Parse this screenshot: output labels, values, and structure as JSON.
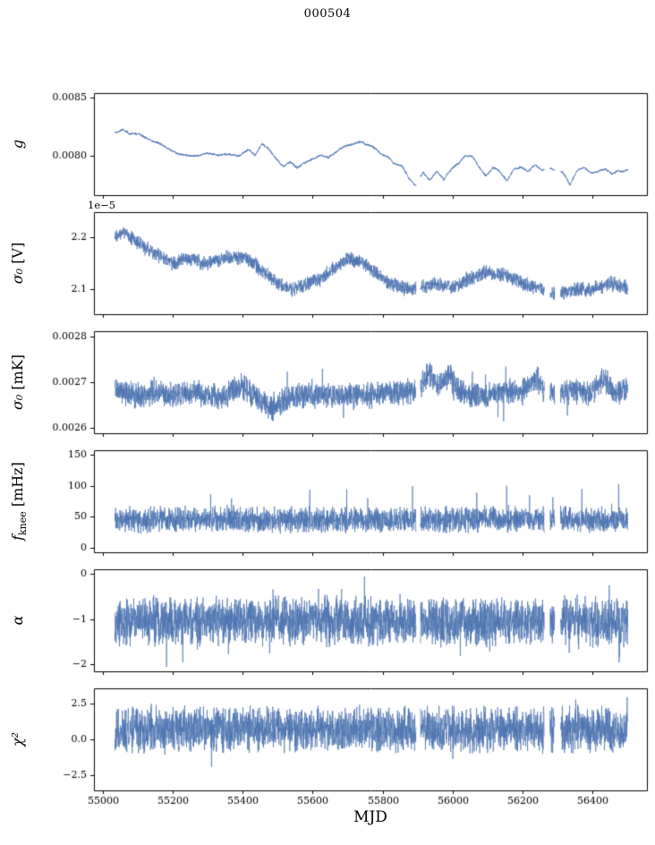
{
  "title": "000504",
  "xlabel": "MJD",
  "chart_data": {
    "type": "line",
    "title": "000504",
    "xlabel": "MJD",
    "line_color": "#4c72b0",
    "xlim": [
      54975,
      56555
    ],
    "xticks": [
      55000,
      55200,
      55400,
      55600,
      55800,
      56000,
      56200,
      56400
    ],
    "xtick_labels": [
      "55000",
      "55200",
      "55400",
      "55600",
      "55800",
      "56000",
      "56200",
      "56400"
    ],
    "x_data_range": [
      55035,
      56500
    ],
    "gaps": [
      [
        55895,
        55908
      ],
      [
        56262,
        56278
      ],
      [
        56291,
        56308
      ]
    ],
    "representation": "trend+noise",
    "panels": [
      {
        "id": "g",
        "label_var": "g",
        "label_sub": "",
        "label_unit": "",
        "offset_text": "",
        "ylim": [
          0.00766,
          0.00854
        ],
        "yticks": [
          0.008,
          0.0085
        ],
        "ytick_labels": [
          "0.0080",
          "0.0085"
        ],
        "noise": 9e-06,
        "walk": 4e-06,
        "seed": 11,
        "line_width": 1.0,
        "trend_x": [
          55035,
          55060,
          55080,
          55105,
          55130,
          55160,
          55185,
          55210,
          55240,
          55270,
          55300,
          55330,
          55360,
          55390,
          55415,
          55435,
          55455,
          55475,
          55495,
          55515,
          55535,
          55555,
          55575,
          55600,
          55625,
          55645,
          55670,
          55695,
          55720,
          55745,
          55765,
          55790,
          55815,
          55835,
          55855,
          55875,
          55893,
          55915,
          55935,
          55955,
          55975,
          55995,
          56015,
          56035,
          56055,
          56075,
          56095,
          56115,
          56135,
          56155,
          56175,
          56195,
          56215,
          56235,
          56255,
          56275,
          56295,
          56315,
          56335,
          56355,
          56375,
          56395,
          56415,
          56435,
          56455,
          56475,
          56500
        ],
        "trend_y": [
          0.0082,
          0.00822,
          0.00818,
          0.00819,
          0.00815,
          0.00811,
          0.00806,
          0.00802,
          0.00801,
          0.008,
          0.00802,
          0.008,
          0.00801,
          0.008,
          0.00806,
          0.008,
          0.0081,
          0.00806,
          0.00799,
          0.00792,
          0.00795,
          0.0079,
          0.00794,
          0.00797,
          0.008,
          0.00798,
          0.00803,
          0.00808,
          0.00811,
          0.00812,
          0.00809,
          0.00803,
          0.00798,
          0.00792,
          0.00791,
          0.0078,
          0.00774,
          0.00786,
          0.00779,
          0.00787,
          0.0078,
          0.00789,
          0.00794,
          0.008,
          0.00799,
          0.00791,
          0.00784,
          0.00791,
          0.00787,
          0.00779,
          0.00788,
          0.0079,
          0.00786,
          0.00791,
          0.00787,
          0.00789,
          0.00788,
          0.00786,
          0.00776,
          0.00787,
          0.0079,
          0.00785,
          0.00786,
          0.00788,
          0.00784,
          0.00787,
          0.00788
        ]
      },
      {
        "id": "sigma0_V",
        "label_var": "σ₀",
        "label_sub": "",
        "label_unit": " [V]",
        "offset_text": "1e−5",
        "ylim": [
          2.053,
          2.247
        ],
        "yticks": [
          2.1,
          2.2
        ],
        "ytick_labels": [
          "2.1",
          "2.2"
        ],
        "noise": 0.016,
        "walk": 0,
        "seed": 22,
        "line_width": 0.7,
        "trend_x": [
          55035,
          55060,
          55090,
          55120,
          55160,
          55200,
          55250,
          55300,
          55350,
          55400,
          55430,
          55460,
          55500,
          55540,
          55580,
          55620,
          55660,
          55700,
          55740,
          55780,
          55820,
          55860,
          55900,
          55950,
          56000,
          56050,
          56100,
          56150,
          56200,
          56250,
          56300,
          56350,
          56400,
          56450,
          56500
        ],
        "trend_y": [
          2.205,
          2.21,
          2.195,
          2.18,
          2.165,
          2.15,
          2.158,
          2.15,
          2.16,
          2.162,
          2.15,
          2.132,
          2.112,
          2.1,
          2.11,
          2.12,
          2.14,
          2.158,
          2.152,
          2.132,
          2.112,
          2.103,
          2.1,
          2.112,
          2.103,
          2.122,
          2.132,
          2.128,
          2.112,
          2.1,
          2.092,
          2.1,
          2.1,
          2.112,
          2.103
        ]
      },
      {
        "id": "sigma0_mK",
        "label_var": "σ₀",
        "label_sub": "",
        "label_unit": " [mK]",
        "offset_text": "",
        "ylim": [
          0.002588,
          0.002812
        ],
        "yticks": [
          0.0026,
          0.0027,
          0.0028
        ],
        "ytick_labels": [
          "0.0026",
          "0.0027",
          "0.0028"
        ],
        "noise": 3.3e-05,
        "walk": 0,
        "seed": 33,
        "line_width": 0.7,
        "spike_up_prob": 0.004,
        "spike_up_amp": 4e-05,
        "spike_down_prob": 0.003,
        "spike_down_amp": 4e-05,
        "trend_x": [
          55035,
          55100,
          55150,
          55200,
          55250,
          55300,
          55350,
          55400,
          55440,
          55480,
          55520,
          55560,
          55650,
          55750,
          55850,
          55900,
          55935,
          55960,
          55990,
          56015,
          56050,
          56100,
          56150,
          56200,
          56240,
          56260,
          56300,
          56350,
          56400,
          56435,
          56460,
          56500
        ],
        "trend_y": [
          0.00268,
          0.00267,
          0.00268,
          0.00267,
          0.00268,
          0.00267,
          0.00267,
          0.00269,
          0.00267,
          0.00264,
          0.00266,
          0.00267,
          0.00267,
          0.00267,
          0.00268,
          0.00268,
          0.00272,
          0.00269,
          0.00272,
          0.00268,
          0.00267,
          0.00267,
          0.00268,
          0.00268,
          0.00271,
          0.00268,
          0.00268,
          0.00268,
          0.00268,
          0.00271,
          0.00268,
          0.00268
        ]
      },
      {
        "id": "f_knee",
        "label_var": "f",
        "label_sub": "knee",
        "label_unit": " [mHz]",
        "offset_text": "",
        "ylim": [
          -8,
          158
        ],
        "yticks": [
          0,
          50,
          100,
          150
        ],
        "ytick_labels": [
          "0",
          "50",
          "100",
          "150"
        ],
        "noise": 24,
        "walk": 0,
        "seed": 44,
        "line_width": 0.7,
        "spike_up_prob": 0.006,
        "spike_up_amp": 40,
        "clamp": [
          15,
          150
        ],
        "trend_x": [
          55035,
          55300,
          55600,
          55900,
          56200,
          56500
        ],
        "trend_y": [
          45,
          46,
          44,
          45,
          46,
          44
        ]
      },
      {
        "id": "alpha",
        "label_var": "α",
        "label_sub": "",
        "label_unit": "",
        "offset_text": "",
        "ylim": [
          -2.15,
          0.1
        ],
        "yticks": [
          0,
          -1,
          -2
        ],
        "ytick_labels": [
          "0",
          "−1",
          "−2"
        ],
        "noise": 0.6,
        "walk": 0,
        "seed": 55,
        "line_width": 0.7,
        "spike_up_prob": 0.01,
        "spike_up_amp": 0.45,
        "spike_down_prob": 0.01,
        "spike_down_amp": 0.55,
        "trend_x": [
          55035,
          55500,
          56000,
          56500
        ],
        "trend_y": [
          -1.05,
          -1.03,
          -1.06,
          -1.04
        ]
      },
      {
        "id": "chi2",
        "label_var": "χ²",
        "label_sub": "",
        "label_unit": "",
        "offset_text": "",
        "ylim": [
          -3.6,
          3.6
        ],
        "yticks": [
          2.5,
          0.0,
          -2.5
        ],
        "ytick_labels": [
          "2.5",
          "0.0",
          "−2.5"
        ],
        "noise": 1.8,
        "walk": 0,
        "seed": 66,
        "line_width": 0.7,
        "spike_up_prob": 0.01,
        "spike_up_amp": 0.8,
        "spike_down_prob": 0.006,
        "spike_down_amp": 1.6,
        "trend_x": [
          55035,
          55500,
          56000,
          56500
        ],
        "trend_y": [
          0.72,
          0.75,
          0.7,
          0.73
        ]
      }
    ]
  }
}
